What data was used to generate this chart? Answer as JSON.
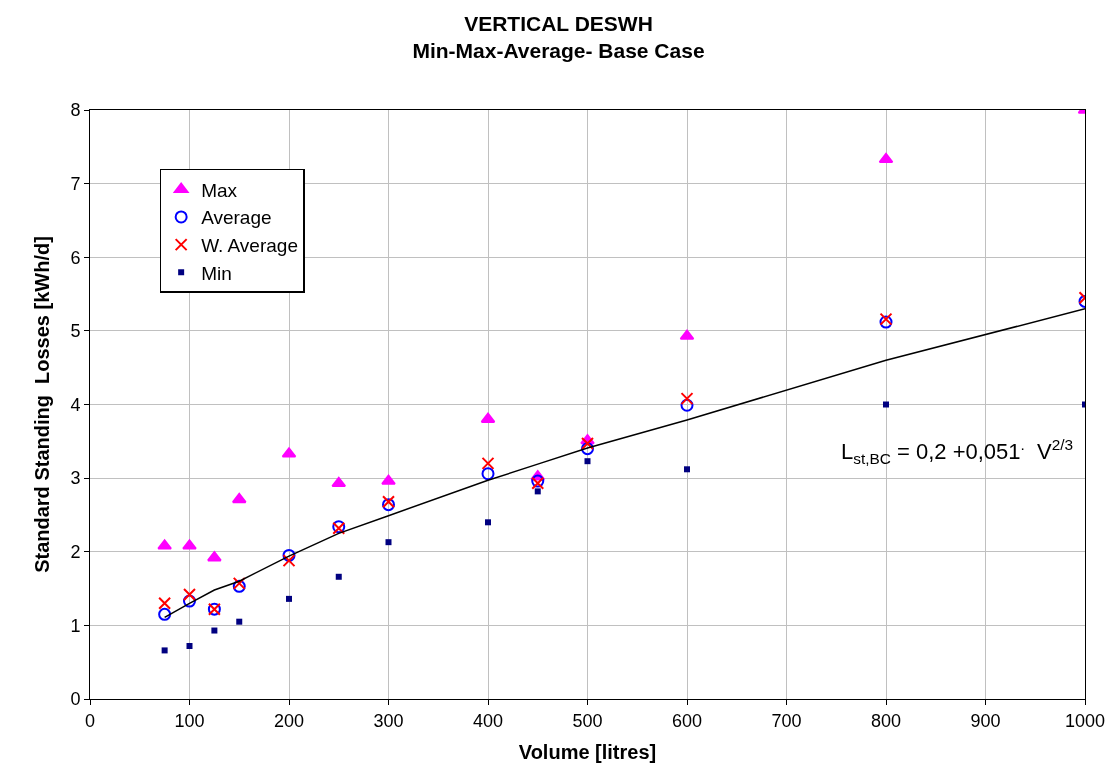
{
  "chart_data": {
    "type": "scatter",
    "title": "VERTICAL DESWH",
    "subtitle": "Min-Max-Average- Base Case",
    "xlabel": "Volume [litres]",
    "ylabel": "Standard Standing  Losses [kWh/d]",
    "x": [
      75,
      100,
      125,
      150,
      200,
      250,
      300,
      400,
      450,
      500,
      600,
      800,
      1000
    ],
    "series": [
      {
        "name": "Max",
        "color": "#ff00ff",
        "marker": "triangle",
        "values": [
          2.08,
          2.08,
          1.92,
          2.71,
          3.33,
          2.93,
          2.96,
          3.8,
          3.02,
          3.51,
          4.93,
          7.33,
          8.0
        ]
      },
      {
        "name": "Average",
        "color": "#0000ff",
        "marker": "circle",
        "values": [
          1.15,
          1.33,
          1.22,
          1.53,
          1.95,
          2.34,
          2.64,
          3.06,
          2.96,
          3.4,
          3.99,
          5.12,
          5.4
        ]
      },
      {
        "name": "W. Average",
        "color": "#ff0000",
        "marker": "cross",
        "values": [
          1.3,
          1.42,
          1.22,
          1.57,
          1.88,
          2.32,
          2.68,
          3.2,
          2.93,
          3.47,
          4.08,
          5.16,
          5.45
        ]
      },
      {
        "name": "Min",
        "color": "#000080",
        "marker": "square",
        "values": [
          0.66,
          0.72,
          0.93,
          1.05,
          1.36,
          1.66,
          2.13,
          2.4,
          2.82,
          3.23,
          3.12,
          4.0,
          4.0
        ]
      },
      {
        "type": "line",
        "color": "#000000",
        "marker": "none",
        "values": [
          1.11,
          1.3,
          1.48,
          1.6,
          1.94,
          2.25,
          2.49,
          2.97,
          3.19,
          3.41,
          3.79,
          4.6,
          5.3
        ]
      }
    ],
    "annotations": [
      "L$_{st,BC}$ = 0,2 +0,051$^{.}$  V$^{2/3}$"
    ],
    "xlim": [
      0,
      1000
    ],
    "xticks": [
      0,
      100,
      200,
      300,
      400,
      500,
      600,
      700,
      800,
      900,
      1000
    ],
    "ylim": [
      0,
      8
    ],
    "yticks": [
      0,
      1,
      2,
      3,
      4,
      5,
      6,
      7,
      8
    ],
    "grid": true,
    "legend": "top left"
  }
}
